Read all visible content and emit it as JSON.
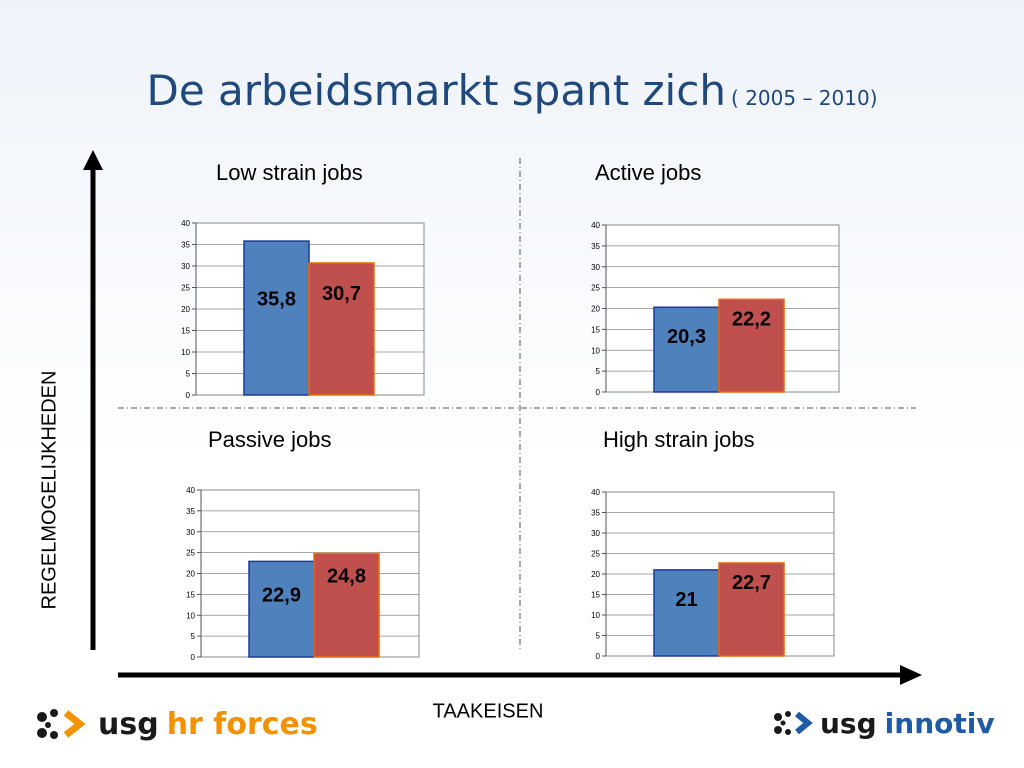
{
  "slide": {
    "title": "De arbeidsmarkt spant zich",
    "subtitle": "( 2005 – 2010)",
    "y_axis_label": "REGELMOGELIJKHEDEN",
    "x_axis_label": "TAAKEISEN"
  },
  "logos": {
    "left": {
      "usg": "usg",
      "brand": "hr forces"
    },
    "right": {
      "usg": "usg",
      "brand": "innotiv"
    }
  },
  "colors": {
    "title": "#1f497d",
    "bar_2005": "#4f81bd",
    "bar_2010": "#c0504d",
    "logo_orange": "#f39200",
    "logo_blue": "#1f5aa6"
  },
  "chart_data": [
    {
      "type": "bar",
      "title": "Low strain jobs",
      "series": [
        {
          "values": [
            35.8
          ]
        },
        {
          "values": [
            30.7
          ]
        }
      ],
      "data_labels": [
        "35,8",
        "30,7"
      ],
      "ylim": [
        0,
        40
      ],
      "yticks": [
        "0",
        "5",
        "10",
        "15",
        "20",
        "25",
        "30",
        "35",
        "40"
      ],
      "grid": true
    },
    {
      "type": "bar",
      "title": "Active jobs",
      "series": [
        {
          "values": [
            20.3
          ]
        },
        {
          "values": [
            22.2
          ]
        }
      ],
      "data_labels": [
        "20,3",
        "22,2"
      ],
      "ylim": [
        0,
        40
      ],
      "yticks": [
        "0",
        "5",
        "10",
        "15",
        "20",
        "25",
        "30",
        "35",
        "40"
      ],
      "grid": true
    },
    {
      "type": "bar",
      "title": "Passive jobs",
      "series": [
        {
          "values": [
            22.9
          ]
        },
        {
          "values": [
            24.8
          ]
        }
      ],
      "data_labels": [
        "22,9",
        "24,8"
      ],
      "ylim": [
        0,
        40
      ],
      "yticks": [
        "0",
        "5",
        "10",
        "15",
        "20",
        "25",
        "30",
        "35",
        "40"
      ],
      "grid": true
    },
    {
      "type": "bar",
      "title": "High strain jobs",
      "series": [
        {
          "values": [
            21
          ]
        },
        {
          "values": [
            22.7
          ]
        }
      ],
      "data_labels": [
        "21",
        "22,7"
      ],
      "ylim": [
        0,
        40
      ],
      "yticks": [
        "0",
        "5",
        "10",
        "15",
        "20",
        "25",
        "30",
        "35",
        "40"
      ],
      "grid": true
    }
  ]
}
